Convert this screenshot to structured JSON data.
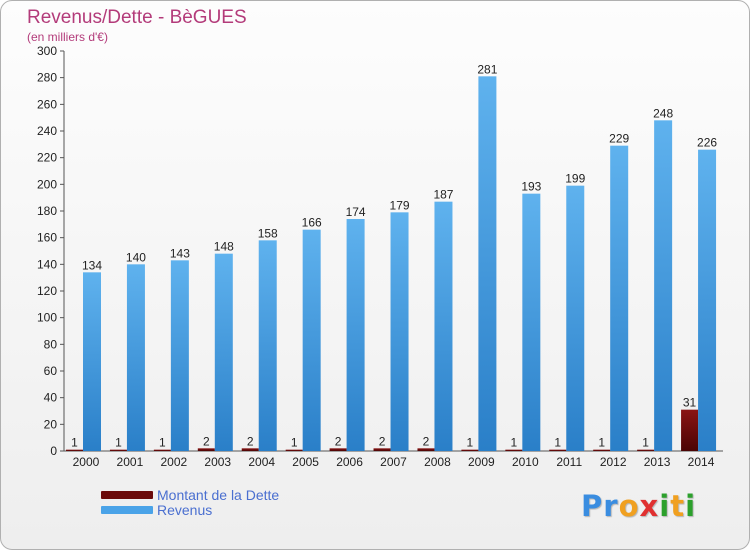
{
  "title": "Revenus/Dette - BèGUES",
  "subtitle": "(en milliers d'€)",
  "logo_letters": [
    {
      "ch": "P",
      "color": "#3a8de0"
    },
    {
      "ch": "r",
      "color": "#3a8de0"
    },
    {
      "ch": "o",
      "color": "#f0a020"
    },
    {
      "ch": "x",
      "color": "#e03030"
    },
    {
      "ch": "i",
      "color": "#2ca02c"
    },
    {
      "ch": "t",
      "color": "#f0a020"
    },
    {
      "ch": "i",
      "color": "#2ca02c"
    }
  ],
  "chart_data": {
    "type": "bar",
    "categories": [
      "2000",
      "2001",
      "2002",
      "2003",
      "2004",
      "2005",
      "2006",
      "2007",
      "2008",
      "2009",
      "2010",
      "2011",
      "2012",
      "2013",
      "2014"
    ],
    "series": [
      {
        "name": "Montant de la Dette",
        "color": "#6b0a0a",
        "values": [
          1,
          1,
          1,
          2,
          2,
          1,
          2,
          2,
          2,
          1,
          1,
          1,
          1,
          1,
          31
        ]
      },
      {
        "name": "Revenus",
        "color": "#4aa3e8",
        "values": [
          134,
          140,
          143,
          148,
          158,
          166,
          174,
          179,
          187,
          281,
          193,
          199,
          229,
          248,
          226
        ]
      }
    ],
    "ylim": [
      0,
      300
    ],
    "ytick_step": 20,
    "grid": false,
    "legend_position": "bottom-left"
  }
}
